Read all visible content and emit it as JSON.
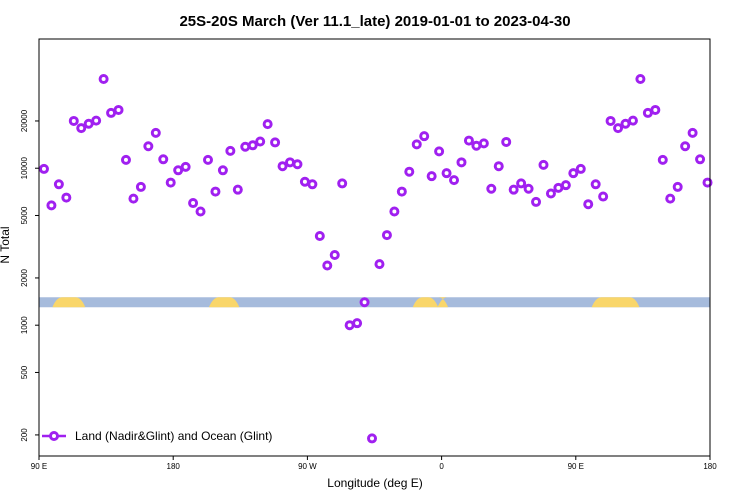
{
  "chart_data": {
    "type": "scatter",
    "title": "25S-20S March (Ver 11.1_late)   2019-01-01 to 2023-04-30",
    "xlabel": "Longitude (deg E)",
    "ylabel": "N Total",
    "y_scale": "log",
    "xlim": [
      -90,
      180
    ],
    "ylim": [
      170,
      55000
    ],
    "x_ticks": [
      {
        "value": -90,
        "label": "90 E"
      },
      {
        "value": -36,
        "label": "180"
      },
      {
        "value": 18,
        "label": "90 W"
      },
      {
        "value": 72,
        "label": "0"
      },
      {
        "value": 126,
        "label": "90 E"
      },
      {
        "value": 180,
        "label": "180"
      }
    ],
    "y_ticks": [
      {
        "value": 200,
        "label": "200"
      },
      {
        "value": 500,
        "label": "500"
      },
      {
        "value": 1000,
        "label": "1000"
      },
      {
        "value": 2000,
        "label": "2000"
      },
      {
        "value": 5000,
        "label": "5000"
      },
      {
        "value": 10000,
        "label": "10000"
      },
      {
        "value": 20000,
        "label": "20000"
      }
    ],
    "series": [
      {
        "name": "Land (Nadir&Glint) and Ocean (Glint)",
        "color": "#a020f0",
        "x": [
          -88,
          -85,
          -82,
          -79,
          -76,
          -73,
          -70,
          -67,
          -64,
          -61,
          -58,
          -55,
          -52,
          -49,
          -46,
          -43,
          -40,
          -37,
          -34,
          -31,
          -28,
          -25,
          -22,
          -19,
          -16,
          -13,
          -10,
          -7,
          -4,
          -1,
          2,
          5,
          8,
          11,
          14,
          17,
          20,
          23,
          26,
          29,
          32,
          35,
          38,
          41,
          44,
          47,
          50,
          53,
          56,
          59,
          62,
          65,
          68,
          71,
          74,
          77,
          80,
          83,
          86,
          89,
          92,
          95,
          98,
          101,
          104,
          107,
          110,
          113,
          116,
          119,
          122,
          125,
          128,
          131,
          134,
          137,
          140,
          143,
          146,
          149,
          152,
          155,
          158,
          161,
          164,
          167,
          170,
          173,
          176,
          179
        ],
        "y": [
          9900,
          5800,
          7900,
          6500,
          20000,
          18000,
          19200,
          20100,
          37000,
          22500,
          23500,
          11300,
          6400,
          7600,
          13800,
          16800,
          11400,
          8100,
          9700,
          10200,
          6000,
          5300,
          11300,
          7100,
          9700,
          12900,
          7300,
          13700,
          14000,
          14800,
          19100,
          14600,
          10300,
          10900,
          10600,
          8200,
          7900,
          3700,
          2400,
          2800,
          8000,
          1000,
          1030,
          1400,
          190,
          2450,
          3750,
          5300,
          7100,
          9500,
          14200,
          16000,
          8900,
          12800,
          9300,
          8400,
          10900,
          15000,
          13900,
          14400,
          7400,
          10300,
          14700,
          7300,
          8000,
          7400,
          6100,
          10500,
          6900,
          7500,
          7800,
          9300,
          9900,
          5900,
          7900,
          6600,
          20000,
          18000,
          19200,
          20100,
          37000,
          22500,
          23500,
          11300,
          6400,
          7600,
          13800,
          16800,
          11400,
          8100
        ]
      }
    ],
    "legend": {
      "position": "bottom-left"
    },
    "basemap": {
      "land_color": "#f9d66a",
      "ocean_color": "#a6bbdc",
      "y_value": 1400
    }
  }
}
